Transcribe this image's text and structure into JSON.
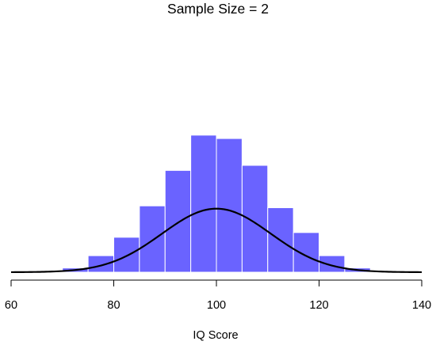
{
  "chart_data": {
    "type": "bar",
    "title": "Sample Size = 2",
    "xlabel": "IQ Score",
    "ylabel": "",
    "xlim": [
      60,
      140
    ],
    "xticks": [
      60,
      80,
      100,
      120,
      140
    ],
    "bin_width": 5,
    "bins": [
      {
        "x0": 65,
        "x1": 70,
        "value": 0.0009
      },
      {
        "x0": 70,
        "x1": 75,
        "value": 0.0025
      },
      {
        "x0": 75,
        "x1": 80,
        "value": 0.0098
      },
      {
        "x0": 80,
        "x1": 85,
        "value": 0.0207
      },
      {
        "x0": 85,
        "x1": 90,
        "value": 0.0393
      },
      {
        "x0": 90,
        "x1": 95,
        "value": 0.0603
      },
      {
        "x0": 95,
        "x1": 100,
        "value": 0.0812
      },
      {
        "x0": 100,
        "x1": 105,
        "value": 0.0792
      },
      {
        "x0": 105,
        "x1": 110,
        "value": 0.0633
      },
      {
        "x0": 110,
        "x1": 115,
        "value": 0.0382
      },
      {
        "x0": 115,
        "x1": 120,
        "value": 0.0235
      },
      {
        "x0": 120,
        "x1": 125,
        "value": 0.0098
      },
      {
        "x0": 125,
        "x1": 130,
        "value": 0.0025
      }
    ],
    "curve": {
      "type": "normal_density",
      "mean": 100,
      "sd": 10.6
    },
    "ylim": [
      0,
      0.09
    ],
    "grid": false,
    "legend": "none",
    "colors": {
      "bar_fill": "#6a63ff",
      "bar_edge": "#ffffff",
      "curve": "#000000",
      "axis": "#000000"
    }
  }
}
